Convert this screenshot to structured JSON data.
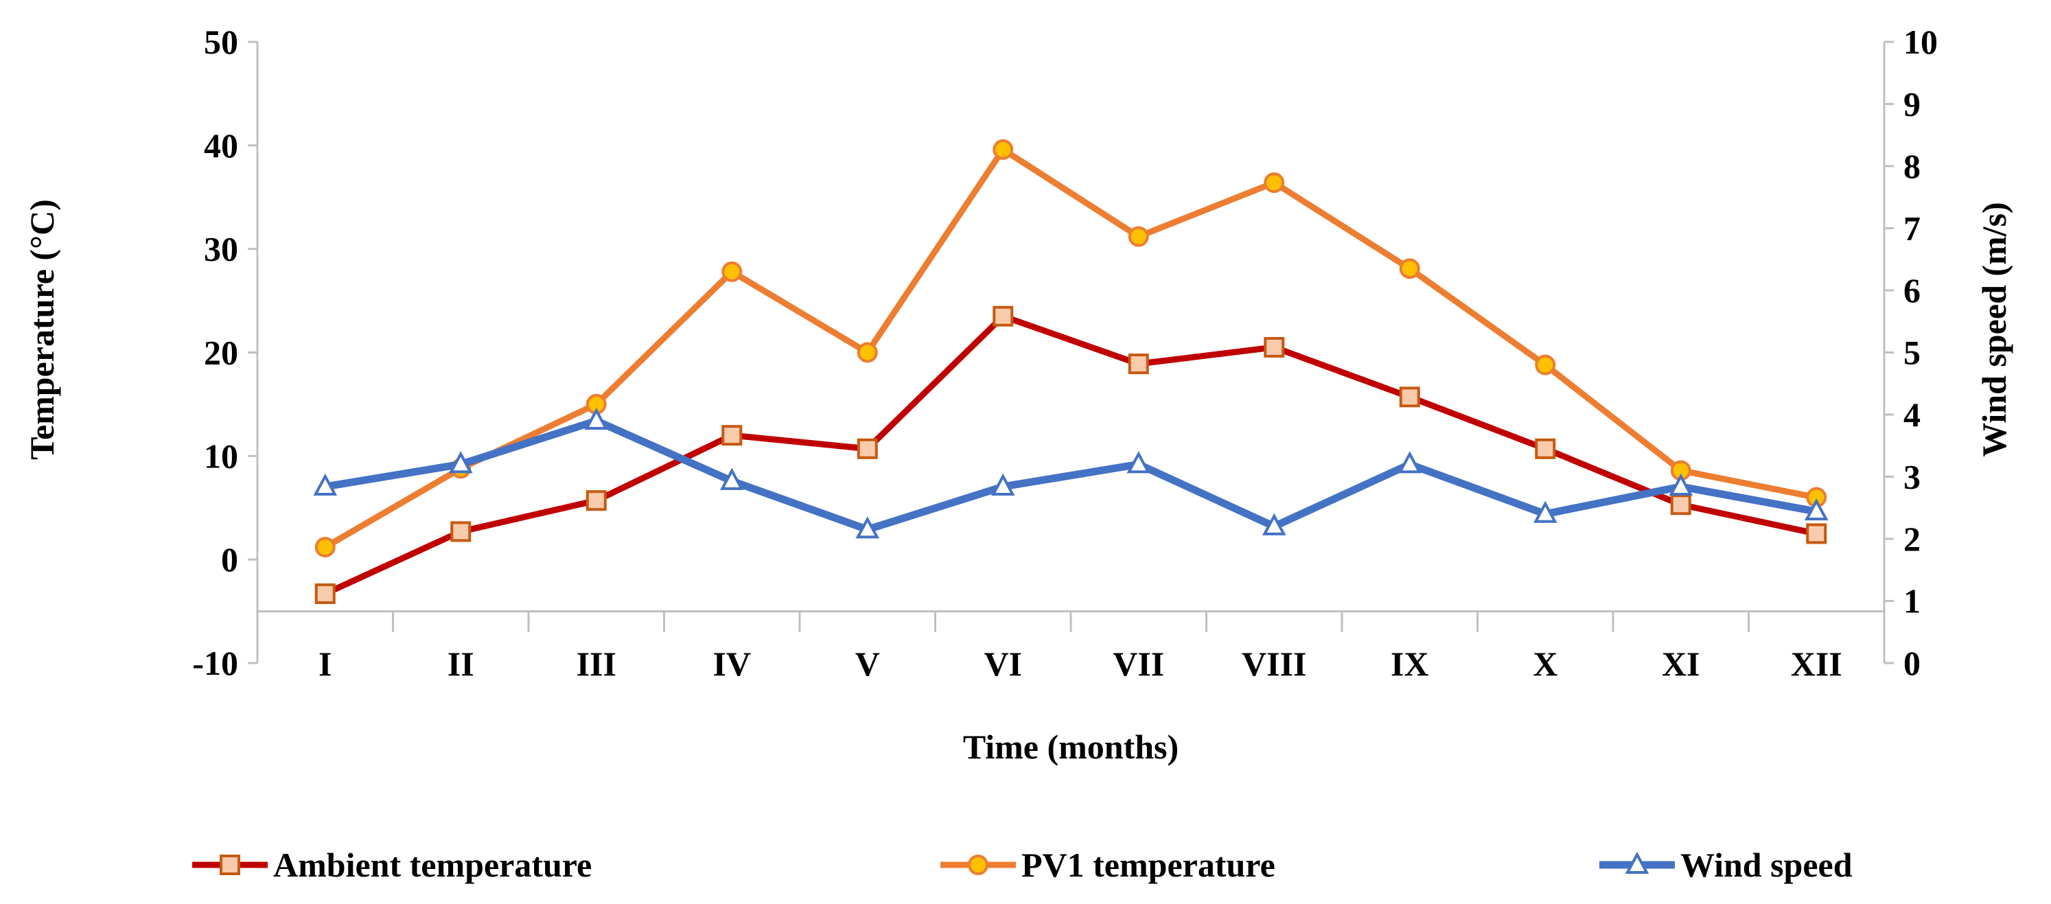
{
  "chart_data": {
    "type": "line",
    "title": "",
    "xlabel": "Time (months)",
    "ylabel": "Temperature (°C)",
    "y2label": "Wind speed (m/s)",
    "categories": [
      "I",
      "II",
      "III",
      "IV",
      "V",
      "VI",
      "VII",
      "VIII",
      "IX",
      "X",
      "XI",
      "XII"
    ],
    "ylim": [
      -10,
      50
    ],
    "yticks": [
      -10,
      0,
      10,
      20,
      30,
      40,
      50
    ],
    "y2lim": [
      0,
      10
    ],
    "y2ticks": [
      0,
      1,
      2,
      3,
      4,
      5,
      6,
      7,
      8,
      9,
      10
    ],
    "x_axis_crosses_y": -5,
    "grid": false,
    "legend_position": "bottom",
    "series": [
      {
        "name": "Ambient temperature",
        "axis": "left",
        "color": "#C00000",
        "marker": "square",
        "marker_fill": "#F8CBAD",
        "marker_stroke": "#C55A11",
        "values": [
          -3.3,
          2.7,
          5.7,
          12.0,
          10.7,
          23.5,
          18.9,
          20.5,
          15.7,
          10.7,
          5.3,
          2.5
        ]
      },
      {
        "name": "PV1 temperature",
        "axis": "left",
        "color": "#ED7D31",
        "marker": "circle",
        "marker_fill": "#FFC000",
        "marker_stroke": "#ED7D31",
        "values": [
          1.2,
          8.8,
          15.0,
          27.8,
          20.0,
          39.6,
          31.2,
          36.4,
          28.1,
          18.8,
          8.6,
          6.0
        ]
      },
      {
        "name": "Wind speed",
        "axis": "right",
        "color": "#4472C4",
        "marker": "triangle",
        "marker_fill": "#FFFFFF",
        "marker_stroke": "#4472C4",
        "values": [
          2.84,
          3.2,
          3.9,
          2.93,
          2.15,
          2.84,
          3.2,
          2.2,
          3.2,
          2.4,
          2.84,
          2.44
        ]
      }
    ]
  }
}
